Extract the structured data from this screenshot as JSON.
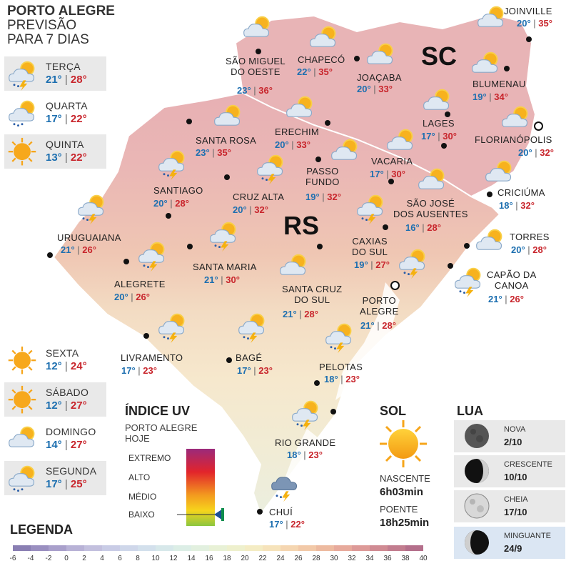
{
  "header": {
    "line1": "PORTO ALEGRE",
    "line2": "PREVISÃO",
    "line3": "PARA 7 DIAS"
  },
  "forecast": [
    {
      "day": "TERÇA",
      "min": "21°",
      "max": "28°",
      "icon": "storm-cloud-sun-icon"
    },
    {
      "day": "QUARTA",
      "min": "17°",
      "max": "22°",
      "icon": "sun-cloud-rain-icon"
    },
    {
      "day": "QUINTA",
      "min": "13°",
      "max": "22°",
      "icon": "sun-icon"
    },
    {
      "day": "SEXTA",
      "min": "12°",
      "max": "24°",
      "icon": "sun-icon"
    },
    {
      "day": "SÁBADO",
      "min": "12°",
      "max": "27°",
      "icon": "sun-icon"
    },
    {
      "day": "DOMINGO",
      "min": "14°",
      "max": "27°",
      "icon": "sun-cloud-icon"
    },
    {
      "day": "SEGUNDA",
      "min": "17°",
      "max": "25°",
      "icon": "sun-cloud-rain-icon"
    }
  ],
  "states": {
    "sc": "SC",
    "rs": "RS"
  },
  "cities": [
    {
      "name": "JOINVILLE",
      "min": "20°",
      "max": "35°"
    },
    {
      "name": "SÃO MIGUEL\nDO OESTE",
      "min": "23°",
      "max": "36°"
    },
    {
      "name": "CHAPECÓ",
      "min": "22°",
      "max": "35°"
    },
    {
      "name": "JOAÇABA",
      "min": "20°",
      "max": "33°"
    },
    {
      "name": "BLUMENAU",
      "min": "19°",
      "max": "34°"
    },
    {
      "name": "LAGES",
      "min": "17°",
      "max": "30°"
    },
    {
      "name": "FLORIANÓPOLIS",
      "min": "20°",
      "max": "32°"
    },
    {
      "name": "SANTA ROSA",
      "min": "23°",
      "max": "35°"
    },
    {
      "name": "ERECHIM",
      "min": "20°",
      "max": "33°"
    },
    {
      "name": "VACARIA",
      "min": "17°",
      "max": "30°"
    },
    {
      "name": "PASSO\nFUNDO",
      "min": "19°",
      "max": "32°"
    },
    {
      "name": "SANTIAGO",
      "min": "20°",
      "max": "28°"
    },
    {
      "name": "CRUZ ALTA",
      "min": "20°",
      "max": "32°"
    },
    {
      "name": "SÃO JOSÉ\nDOS AUSENTES",
      "min": "16°",
      "max": "28°"
    },
    {
      "name": "CRICIÚMA",
      "min": "18°",
      "max": "32°"
    },
    {
      "name": "URUGUAIANA",
      "min": "21°",
      "max": "26°"
    },
    {
      "name": "CAXIAS\nDO SUL",
      "min": "19°",
      "max": "27°"
    },
    {
      "name": "TORRES",
      "min": "20°",
      "max": "28°"
    },
    {
      "name": "SANTA MARIA",
      "min": "21°",
      "max": "30°"
    },
    {
      "name": "ALEGRETE",
      "min": "20°",
      "max": "26°"
    },
    {
      "name": "CAPÃO DA\nCANOA",
      "min": "21°",
      "max": "26°"
    },
    {
      "name": "SANTA CRUZ\nDO SUL",
      "min": "21°",
      "max": "28°"
    },
    {
      "name": "PORTO\nALEGRE",
      "min": "21°",
      "max": "28°"
    },
    {
      "name": "LIVRAMENTO",
      "min": "17°",
      "max": "23°"
    },
    {
      "name": "BAGÉ",
      "min": "17°",
      "max": "23°"
    },
    {
      "name": "PELOTAS",
      "min": "18°",
      "max": "23°"
    },
    {
      "name": "RIO GRANDE",
      "min": "18°",
      "max": "23°"
    },
    {
      "name": "CHUÍ",
      "min": "17°",
      "max": "22°"
    }
  ],
  "uv": {
    "title": "ÍNDICE UV",
    "subtitle1": "PORTO ALEGRE",
    "subtitle2": "HOJE",
    "levels": [
      "EXTREMO",
      "ALTO",
      "MÉDIO",
      "BAIXO"
    ],
    "current": "BAIXO"
  },
  "sun": {
    "title": "SOL",
    "rise_label": "NASCENTE",
    "rise": "6h03min",
    "set_label": "POENTE",
    "set": "18h25min"
  },
  "moon": {
    "title": "LUA",
    "phases": [
      {
        "name": "NOVA",
        "date": "2/10"
      },
      {
        "name": "CRESCENTE",
        "date": "10/10"
      },
      {
        "name": "CHEIA",
        "date": "17/10"
      },
      {
        "name": "MINGUANTE",
        "date": "24/9",
        "current": true
      }
    ]
  },
  "legend": {
    "title": "LEGENDA",
    "ticks": [
      "-6",
      "-4",
      "-2",
      "0",
      "2",
      "4",
      "6",
      "8",
      "10",
      "12",
      "14",
      "16",
      "18",
      "20",
      "22",
      "24",
      "26",
      "28",
      "30",
      "32",
      "34",
      "36",
      "38",
      "40"
    ]
  },
  "colors": {
    "min_temp": "#1d6fb0",
    "max_temp": "#c8252c",
    "panel_bg": "#e9e9e9",
    "moon_current_bg": "#dbe6f3"
  }
}
